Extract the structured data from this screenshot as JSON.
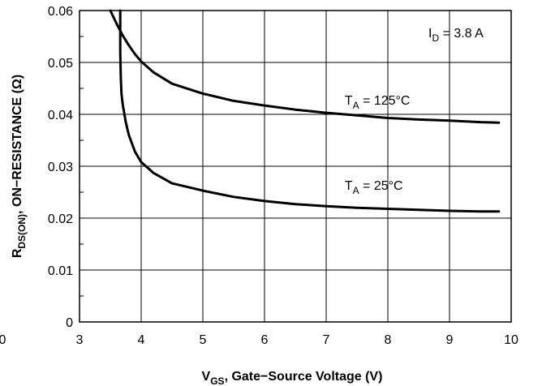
{
  "chart_data": {
    "type": "line",
    "xlabel": {
      "main": "V",
      "sub": "GS",
      "rest": ", Gate−Source Voltage (V)"
    },
    "ylabel": {
      "main": "R",
      "sub": "DS(ON)",
      "rest": ", ON−RESISTANCE (Ω)"
    },
    "xlim": [
      3,
      10
    ],
    "ylim": [
      0,
      0.06
    ],
    "x_ticks": [
      "3",
      "4",
      "5",
      "6",
      "7",
      "8",
      "9",
      "10"
    ],
    "x_ticks_values": [
      3,
      4,
      5,
      6,
      7,
      8,
      9,
      10
    ],
    "extra_x_tick_label": "0",
    "y_ticks": [
      "0",
      "0.01",
      "0.02",
      "0.03",
      "0.04",
      "0.05",
      "0.06"
    ],
    "y_ticks_values": [
      0,
      0.01,
      0.02,
      0.03,
      0.04,
      0.05,
      0.06
    ],
    "grid": true,
    "series": [
      {
        "label": {
          "main": "T",
          "sub": "A",
          "rest": " = 125°C"
        },
        "x": [
          3.5,
          3.6,
          3.7,
          3.8,
          3.9,
          4.0,
          4.2,
          4.5,
          5.0,
          5.5,
          6.0,
          6.5,
          7.0,
          7.5,
          8.0,
          8.5,
          9.0,
          9.5,
          9.8
        ],
        "y": [
          0.06,
          0.0575,
          0.0552,
          0.0533,
          0.0516,
          0.0502,
          0.0481,
          0.0459,
          0.044,
          0.0426,
          0.0417,
          0.0409,
          0.0403,
          0.0398,
          0.0393,
          0.039,
          0.0388,
          0.0385,
          0.0384
        ]
      },
      {
        "label": {
          "main": "T",
          "sub": "A",
          "rest": " = 25°C"
        },
        "x": [
          3.66,
          3.66,
          3.67,
          3.68,
          3.7,
          3.75,
          3.8,
          3.9,
          4.0,
          4.2,
          4.5,
          5.0,
          5.5,
          6.0,
          6.5,
          7.0,
          7.5,
          8.0,
          8.5,
          9.0,
          9.5,
          9.8
        ],
        "y": [
          0.06,
          0.052,
          0.047,
          0.044,
          0.042,
          0.0385,
          0.036,
          0.0328,
          0.0308,
          0.0287,
          0.0267,
          0.0253,
          0.0241,
          0.0233,
          0.0227,
          0.0223,
          0.022,
          0.0218,
          0.0216,
          0.0214,
          0.0213,
          0.0213
        ]
      }
    ],
    "annotation": {
      "main": "I",
      "sub": "D",
      "rest": " = 3.8 A"
    }
  }
}
